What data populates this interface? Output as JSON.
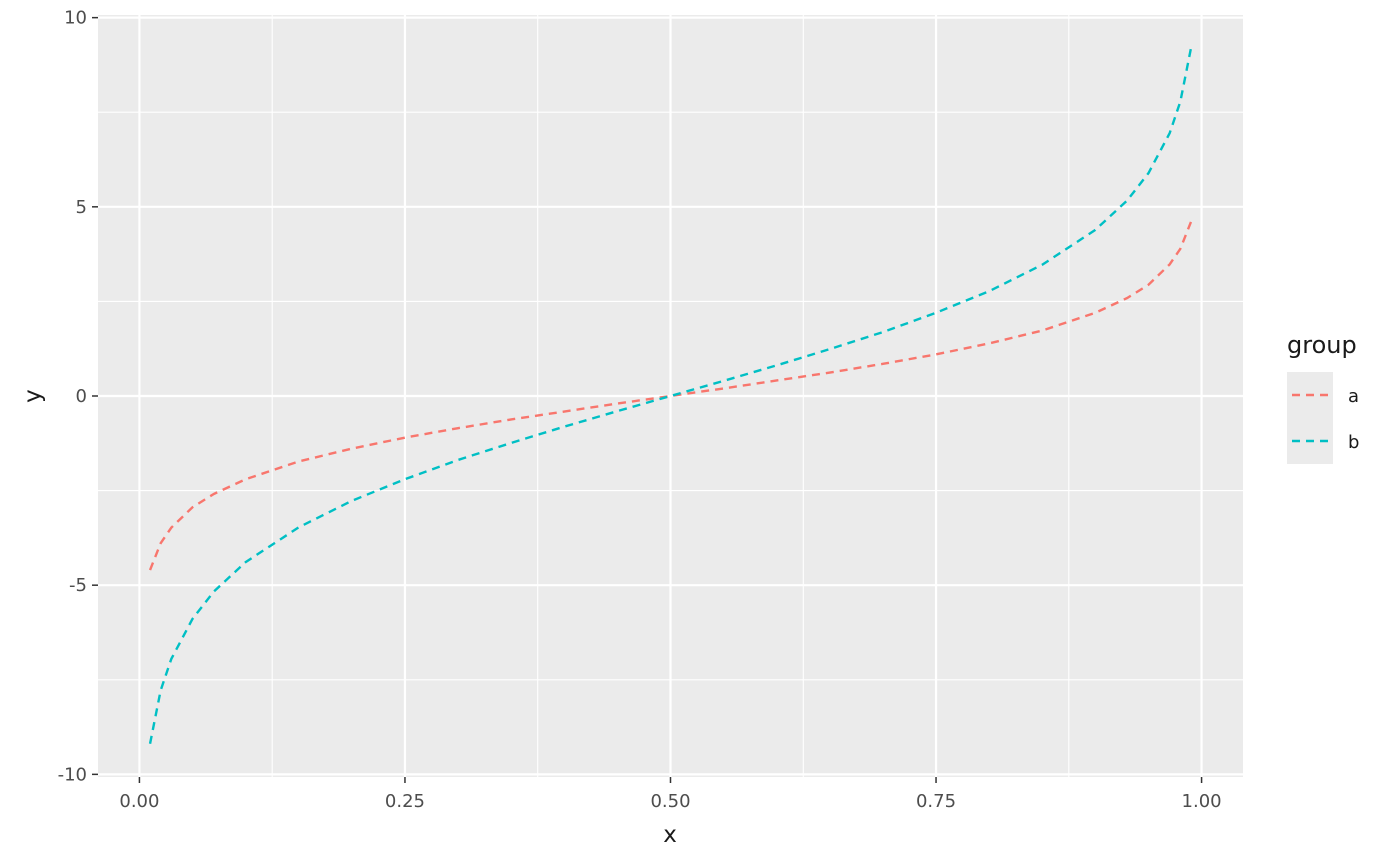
{
  "chart_data": {
    "type": "line",
    "xlabel": "x",
    "ylabel": "y",
    "xlim": [
      -0.039,
      1.039
    ],
    "ylim": [
      -10.07,
      10.07
    ],
    "x_ticks": [
      0.0,
      0.25,
      0.5,
      0.75,
      1.0
    ],
    "x_tick_labels": [
      "0.00",
      "0.25",
      "0.50",
      "0.75",
      "1.00"
    ],
    "x_minor_ticks": [
      0.125,
      0.375,
      0.625,
      0.875
    ],
    "y_ticks": [
      -10,
      -5,
      0,
      5,
      10
    ],
    "y_tick_labels": [
      "-10",
      "-5",
      "0",
      "5",
      "10"
    ],
    "y_minor_ticks": [
      -7.5,
      -2.5,
      2.5,
      7.5
    ],
    "grid": true,
    "background": "#ebebeb",
    "legend": {
      "title": "group",
      "placement": "right"
    },
    "line_style": "dashed",
    "x": [
      0.01,
      0.02,
      0.03,
      0.05,
      0.07,
      0.1,
      0.15,
      0.2,
      0.25,
      0.3,
      0.35,
      0.4,
      0.45,
      0.5,
      0.55,
      0.6,
      0.65,
      0.7,
      0.75,
      0.8,
      0.85,
      0.9,
      0.93,
      0.95,
      0.97,
      0.98,
      0.99
    ],
    "series": [
      {
        "name": "a",
        "color": "#f8766d",
        "values": [
          -4.6,
          -3.89,
          -3.48,
          -2.94,
          -2.59,
          -2.2,
          -1.73,
          -1.39,
          -1.1,
          -0.85,
          -0.62,
          -0.41,
          -0.2,
          0.0,
          0.2,
          0.41,
          0.62,
          0.85,
          1.1,
          1.39,
          1.73,
          2.2,
          2.59,
          2.94,
          3.48,
          3.89,
          4.6
        ]
      },
      {
        "name": "b",
        "color": "#00bfc4",
        "values": [
          -9.19,
          -7.78,
          -6.95,
          -5.89,
          -5.17,
          -4.39,
          -3.47,
          -2.77,
          -2.2,
          -1.69,
          -1.24,
          -0.81,
          -0.4,
          0.0,
          0.4,
          0.81,
          1.24,
          1.69,
          2.2,
          2.77,
          3.47,
          4.39,
          5.17,
          5.89,
          6.95,
          7.78,
          9.19
        ]
      }
    ]
  }
}
